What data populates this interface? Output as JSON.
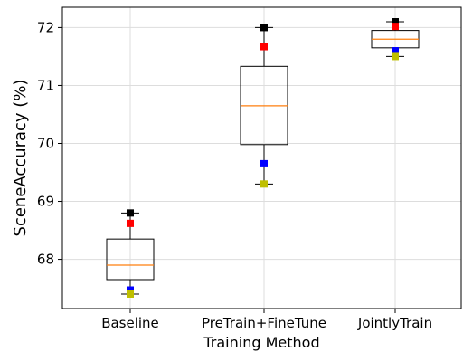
{
  "chart_data": {
    "type": "box",
    "xlabel": "Training Method",
    "ylabel": "SceneAccuracy (%)",
    "categories": [
      "Baseline",
      "PreTrain+FineTune",
      "JointlyTrain"
    ],
    "ylim": [
      67.15,
      72.35
    ],
    "yticks": [
      68,
      69,
      70,
      71,
      72
    ],
    "grid": true,
    "boxes": [
      {
        "category": "Baseline",
        "whisker_low": 67.4,
        "q1": 67.65,
        "median": 67.9,
        "q3": 68.35,
        "whisker_high": 68.8
      },
      {
        "category": "PreTrain+FineTune",
        "whisker_low": 69.3,
        "q1": 69.98,
        "median": 70.65,
        "q3": 71.33,
        "whisker_high": 72.0
      },
      {
        "category": "JointlyTrain",
        "whisker_low": 71.5,
        "q1": 71.65,
        "median": 71.8,
        "q3": 71.95,
        "whisker_high": 72.1
      }
    ],
    "points": [
      {
        "category": "Baseline",
        "color": "black",
        "y": 68.8
      },
      {
        "category": "Baseline",
        "color": "red",
        "y": 68.62
      },
      {
        "category": "Baseline",
        "color": "blue",
        "y": 67.47
      },
      {
        "category": "Baseline",
        "color": "yellow",
        "y": 67.4
      },
      {
        "category": "PreTrain+FineTune",
        "color": "black",
        "y": 72.0
      },
      {
        "category": "PreTrain+FineTune",
        "color": "red",
        "y": 71.67
      },
      {
        "category": "PreTrain+FineTune",
        "color": "blue",
        "y": 69.65
      },
      {
        "category": "PreTrain+FineTune",
        "color": "yellow",
        "y": 69.3
      },
      {
        "category": "JointlyTrain",
        "color": "black",
        "y": 72.1
      },
      {
        "category": "JointlyTrain",
        "color": "red",
        "y": 72.02
      },
      {
        "category": "JointlyTrain",
        "color": "blue",
        "y": 71.6
      },
      {
        "category": "JointlyTrain",
        "color": "yellow",
        "y": 71.5
      }
    ],
    "colors": {
      "box": "#000000",
      "median": "#ff7f0e",
      "grid": "#dddddd",
      "black": "#000000",
      "red": "#ff0000",
      "blue": "#0000ff",
      "yellow": "#bfbf00"
    }
  }
}
